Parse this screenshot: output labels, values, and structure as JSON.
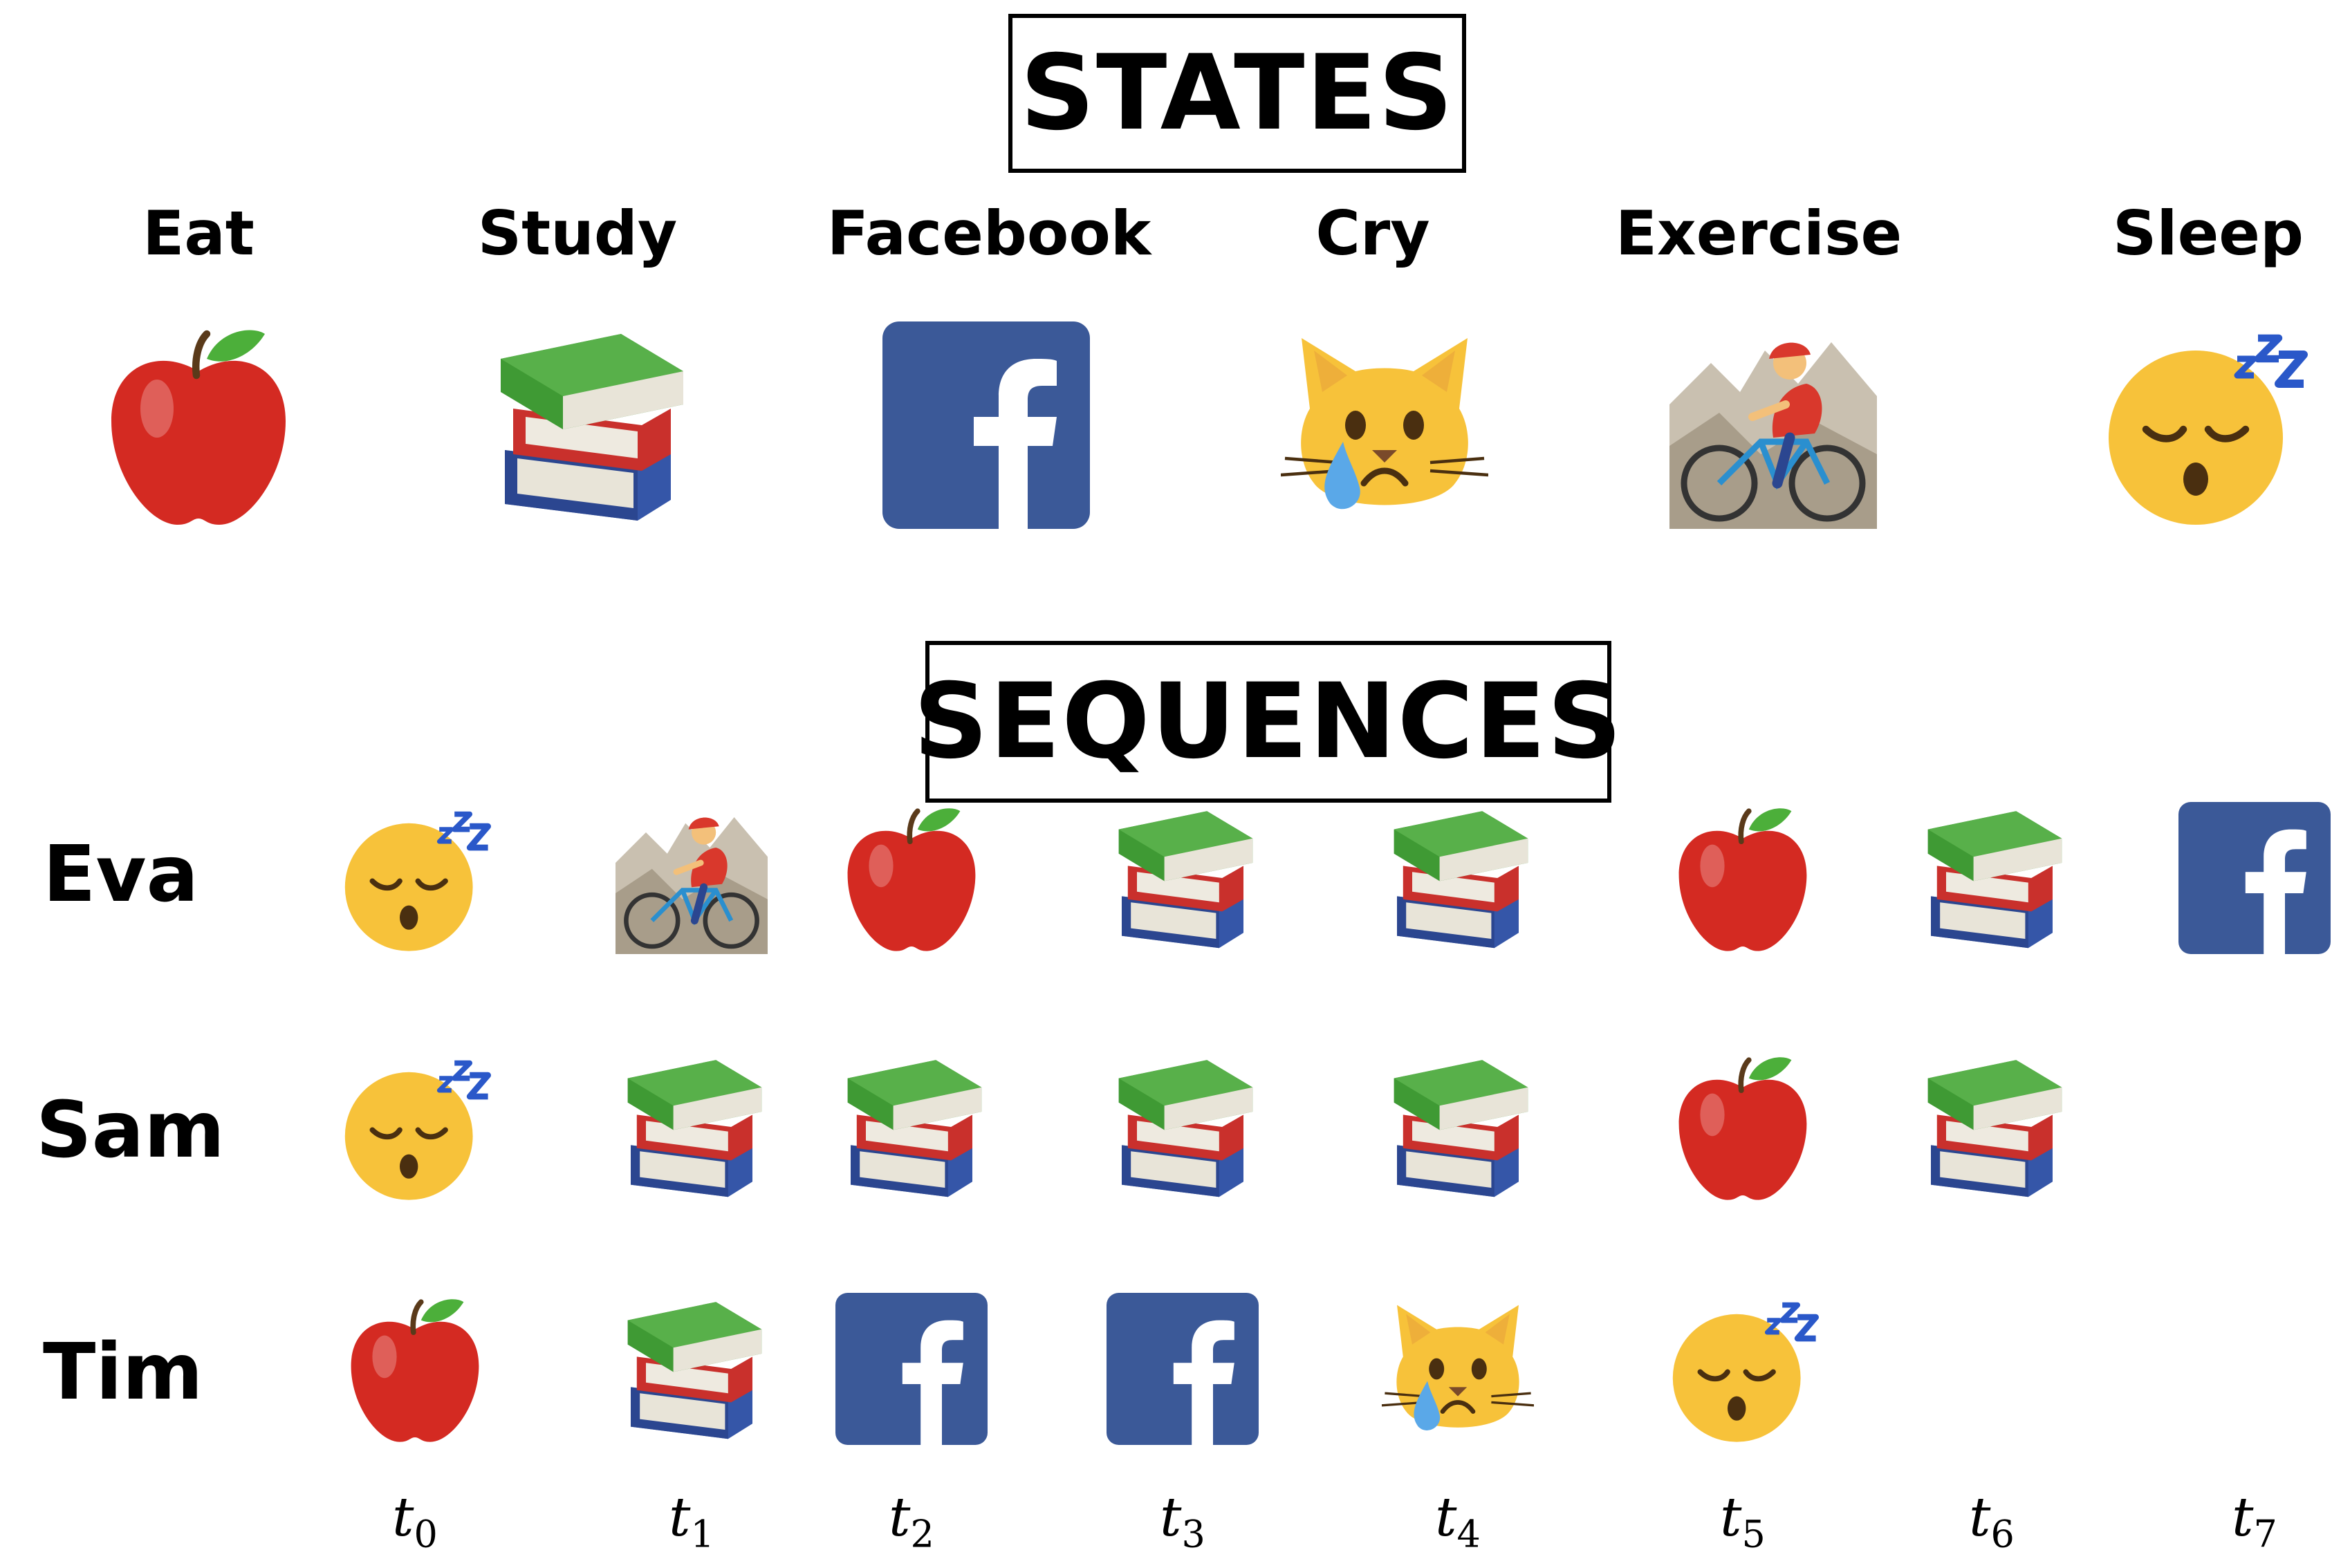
{
  "states_title": "STATES",
  "sequences_title": "SEQUENCES",
  "states": [
    {
      "label": "Eat",
      "icon": "apple-icon"
    },
    {
      "label": "Study",
      "icon": "books-icon"
    },
    {
      "label": "Facebook",
      "icon": "facebook-icon"
    },
    {
      "label": "Cry",
      "icon": "crying-cat-icon"
    },
    {
      "label": "Exercise",
      "icon": "mountain-biker-icon"
    },
    {
      "label": "Sleep",
      "icon": "sleeping-face-icon"
    }
  ],
  "sequences": [
    {
      "name": "Eva",
      "steps": [
        "sleep",
        "exercise",
        "eat",
        "study",
        "study",
        "eat",
        "study",
        "facebook"
      ]
    },
    {
      "name": "Sam",
      "steps": [
        "sleep",
        "study",
        "study",
        "study",
        "study",
        "eat",
        "study"
      ]
    },
    {
      "name": "Tim",
      "steps": [
        "eat",
        "study",
        "facebook",
        "facebook",
        "cry",
        "sleep"
      ]
    }
  ],
  "time_steps": [
    {
      "t": "t",
      "sub": "0"
    },
    {
      "t": "t",
      "sub": "1"
    },
    {
      "t": "t",
      "sub": "2"
    },
    {
      "t": "t",
      "sub": "3"
    },
    {
      "t": "t",
      "sub": "4"
    },
    {
      "t": "t",
      "sub": "5"
    },
    {
      "t": "t",
      "sub": "6"
    },
    {
      "t": "t",
      "sub": "7"
    }
  ],
  "colors": {
    "facebook": "#3b5998",
    "apple": "#d42a22",
    "book_green": "#3f9a34",
    "book_red": "#c9302c",
    "book_blue": "#3556a8",
    "emoji_yellow": "#f7c23a",
    "zzz_blue": "#2a58c9",
    "tear_blue": "#5aa8e8"
  }
}
